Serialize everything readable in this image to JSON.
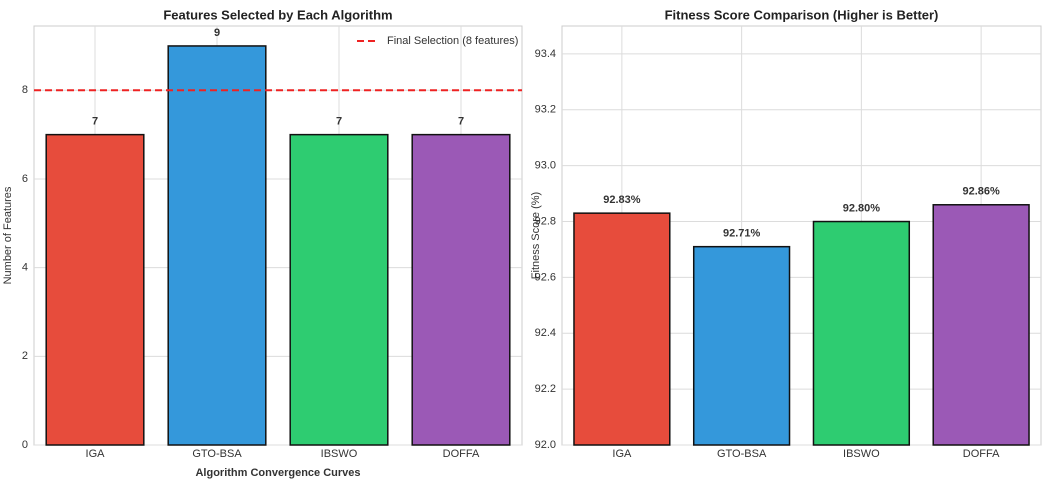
{
  "chart_data": [
    {
      "type": "bar",
      "title": "Features Selected by Each Algorithm",
      "y_label": "Number of Features",
      "x_label": "Algorithm Convergence Curves",
      "categories": [
        "IGA",
        "GTO-BSA",
        "IBSWO",
        "DOFFA"
      ],
      "values": [
        7,
        9,
        7,
        7
      ],
      "colors": [
        "#e74c3c",
        "#3498db",
        "#2ecc71",
        "#9b59b6"
      ],
      "ylim": [
        0,
        9.45
      ],
      "yticks": [
        0,
        2,
        4,
        6,
        8
      ],
      "grid": true,
      "reference_line": {
        "value": 8,
        "label": "Final Selection (8 features)",
        "color": "#ee2222"
      },
      "legend": "upper right"
    },
    {
      "type": "bar",
      "title": "Fitness Score Comparison (Higher is Better)",
      "y_label": "Fitness Score (%)",
      "categories": [
        "IGA",
        "GTO-BSA",
        "IBSWO",
        "DOFFA"
      ],
      "values": [
        92.83,
        92.71,
        92.8,
        92.86
      ],
      "value_labels": [
        "92.83%",
        "92.71%",
        "92.80%",
        "92.86%"
      ],
      "colors": [
        "#e74c3c",
        "#3498db",
        "#2ecc71",
        "#9b59b6"
      ],
      "ylim": [
        92.0,
        93.5
      ],
      "yticks": [
        {
          "value": 92.0,
          "label": "92.0"
        },
        92.2,
        92.4,
        92.6,
        92.8,
        {
          "value": 93.0,
          "label": "93.0"
        },
        93.2,
        93.4
      ],
      "grid": true
    }
  ]
}
